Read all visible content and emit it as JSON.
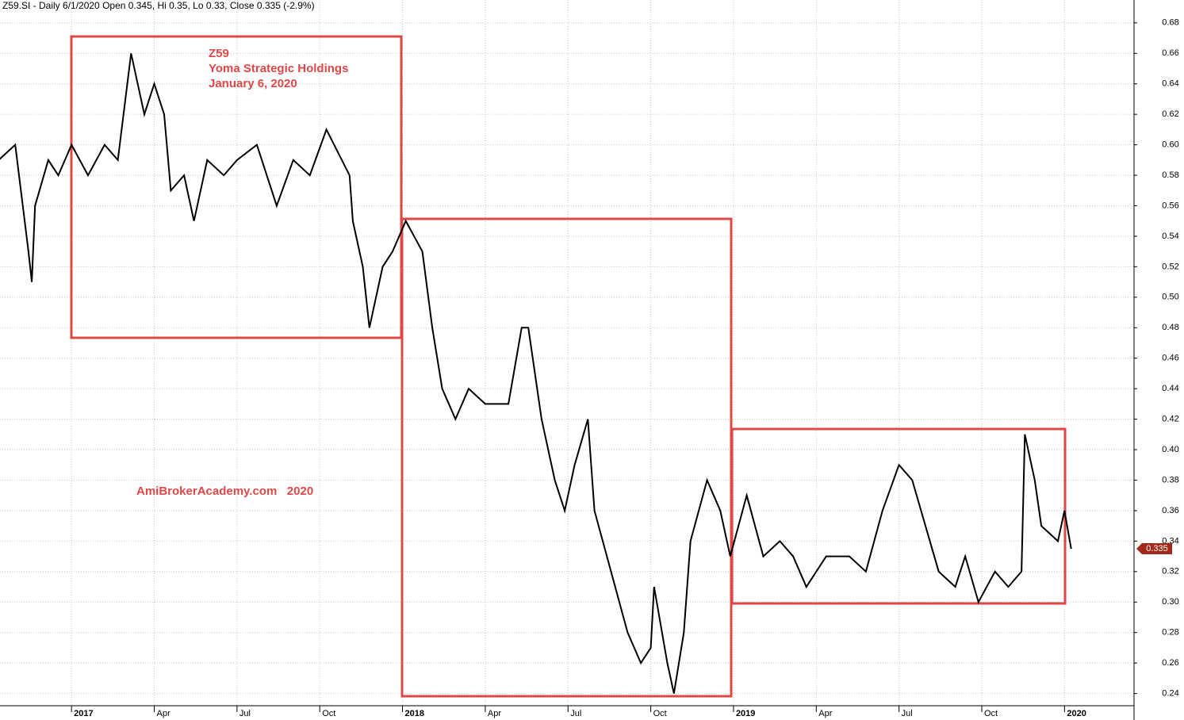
{
  "chart_data": {
    "type": "line",
    "title": "Z59.SI - Daily 6/1/2020 Open 0.345, Hi 0.35, Lo 0.33, Close 0.335 (-2.9%)",
    "annotations": [
      "Z59",
      "Yoma Strategic Holdings",
      "January 6, 2020",
      "AmiBrokerAcademy.com   2020"
    ],
    "x": [
      2016.78,
      2016.83,
      2016.87,
      2016.88,
      2016.89,
      2016.93,
      2016.96,
      2017.0,
      2017.05,
      2017.1,
      2017.14,
      2017.18,
      2017.22,
      2017.25,
      2017.28,
      2017.3,
      2017.34,
      2017.37,
      2017.41,
      2017.46,
      2017.5,
      2017.56,
      2017.62,
      2017.67,
      2017.72,
      2017.77,
      2017.84,
      2017.85,
      2017.88,
      2017.9,
      2017.94,
      2017.97,
      2018.01,
      2018.06,
      2018.09,
      2018.12,
      2018.14,
      2018.16,
      2018.2,
      2018.25,
      2018.32,
      2018.36,
      2018.38,
      2018.42,
      2018.46,
      2018.49,
      2018.52,
      2018.56,
      2018.58,
      2018.63,
      2018.68,
      2018.72,
      2018.75,
      2018.76,
      2018.8,
      2018.82,
      2018.85,
      2018.87,
      2018.92,
      2018.96,
      2018.99,
      2019.04,
      2019.09,
      2019.14,
      2019.18,
      2019.22,
      2019.28,
      2019.35,
      2019.4,
      2019.45,
      2019.5,
      2019.54,
      2019.58,
      2019.62,
      2019.67,
      2019.7,
      2019.74,
      2019.79,
      2019.83,
      2019.87,
      2019.88,
      2019.91,
      2019.93,
      2019.98,
      2020.0,
      2020.02
    ],
    "series": [
      {
        "color": "#000000",
        "values": [
          0.59,
          0.6,
          0.53,
          0.51,
          0.56,
          0.59,
          0.58,
          0.6,
          0.58,
          0.6,
          0.59,
          0.66,
          0.62,
          0.64,
          0.62,
          0.57,
          0.58,
          0.55,
          0.59,
          0.58,
          0.59,
          0.6,
          0.56,
          0.59,
          0.58,
          0.61,
          0.58,
          0.55,
          0.52,
          0.48,
          0.52,
          0.53,
          0.55,
          0.53,
          0.48,
          0.44,
          0.43,
          0.42,
          0.44,
          0.43,
          0.43,
          0.48,
          0.48,
          0.42,
          0.38,
          0.36,
          0.39,
          0.42,
          0.36,
          0.32,
          0.28,
          0.26,
          0.27,
          0.31,
          0.26,
          0.24,
          0.28,
          0.34,
          0.38,
          0.36,
          0.33,
          0.37,
          0.33,
          0.34,
          0.33,
          0.31,
          0.33,
          0.33,
          0.32,
          0.36,
          0.39,
          0.38,
          0.35,
          0.32,
          0.31,
          0.33,
          0.3,
          0.32,
          0.31,
          0.32,
          0.41,
          0.38,
          0.35,
          0.34,
          0.36,
          0.335
        ]
      }
    ],
    "last_price": 0.335,
    "last_price_color": "#a32a1a",
    "xlim": [
      2016.784,
      2020.21
    ],
    "xticks": [
      2017,
      {
        "value": 2017.25,
        "label": "Apr"
      },
      {
        "value": 2017.5,
        "label": "Jul"
      },
      {
        "value": 2017.75,
        "label": "Oct"
      },
      2018,
      {
        "value": 2018.25,
        "label": "Apr"
      },
      {
        "value": 2018.5,
        "label": "Jul"
      },
      {
        "value": 2018.75,
        "label": "Oct"
      },
      2019,
      {
        "value": 2019.25,
        "label": "Apr"
      },
      {
        "value": 2019.5,
        "label": "Jul"
      },
      {
        "value": 2019.75,
        "label": "Oct"
      },
      2020
    ],
    "ylim": [
      0.232,
      0.695
    ],
    "yticks": [
      0.24,
      0.26,
      0.28,
      {
        "value": 0.3,
        "label": "0.30"
      },
      0.32,
      0.34,
      0.36,
      0.38,
      {
        "value": 0.4,
        "label": "0.40"
      },
      0.42,
      0.44,
      0.46,
      0.48,
      {
        "value": 0.5,
        "label": "0.50"
      },
      0.52,
      0.54,
      0.56,
      0.58,
      {
        "value": 0.6,
        "label": "0.60"
      },
      0.62,
      0.64,
      0.66,
      0.68
    ],
    "grid": true
  }
}
